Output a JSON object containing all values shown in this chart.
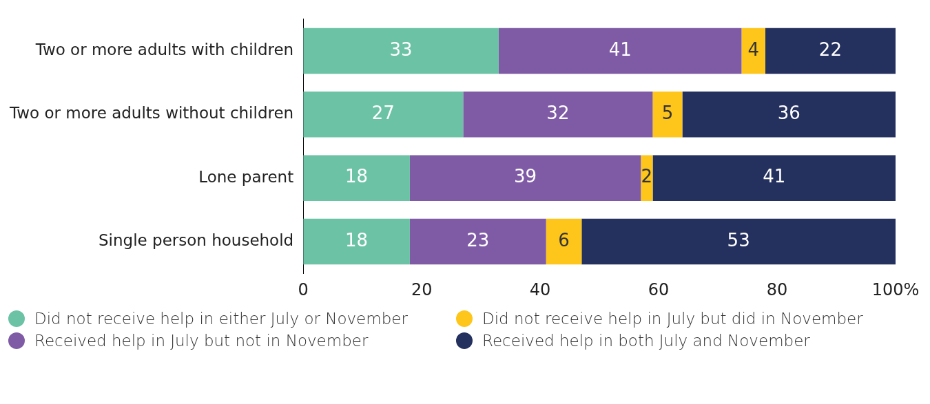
{
  "chart_data": {
    "type": "bar",
    "orientation": "horizontal",
    "stacked": true,
    "data_labels": true,
    "legend": "bottom",
    "marker": "circle",
    "grid": false,
    "categories": [
      "Two or more adults with children",
      "Two or more adults without children",
      "Lone parent",
      "Single person household"
    ],
    "series": [
      {
        "name": "Did not receive help in either July or November",
        "color": "#6cc2a4",
        "values": [
          33,
          27,
          18,
          18
        ]
      },
      {
        "name": "Received help in July but not in November",
        "color": "#7f5ba6",
        "values": [
          41,
          32,
          39,
          23
        ]
      },
      {
        "name": "Did not receive help in July but did in November",
        "color": "#fec61a",
        "values": [
          4,
          5,
          2,
          6
        ]
      },
      {
        "name": "Received help in both July and November",
        "color": "#24305e",
        "values": [
          22,
          36,
          41,
          53
        ]
      }
    ],
    "xlim": [
      0,
      100
    ],
    "xticks": [
      0,
      20,
      40,
      60,
      80,
      {
        "value": 100,
        "label": "100%"
      }
    ]
  }
}
